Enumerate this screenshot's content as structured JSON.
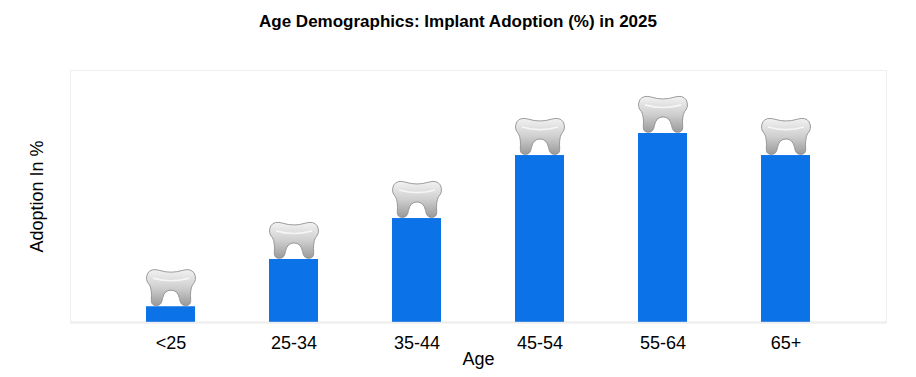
{
  "chart_data": {
    "type": "bar",
    "title": "Age Demographics: Implant Adoption (%) in 2025",
    "x_label": "Age",
    "y_label": "Adoption In %",
    "categories": [
      "<25",
      "25-34",
      "35-44",
      "45-54",
      "55-64",
      "65+"
    ],
    "values": [
      5,
      20,
      33,
      53,
      60,
      53
    ],
    "color": "#0b72e7",
    "ylim": [
      0,
      80
    ],
    "grid": false,
    "data_labels": false,
    "tick_labels": "x"
  }
}
